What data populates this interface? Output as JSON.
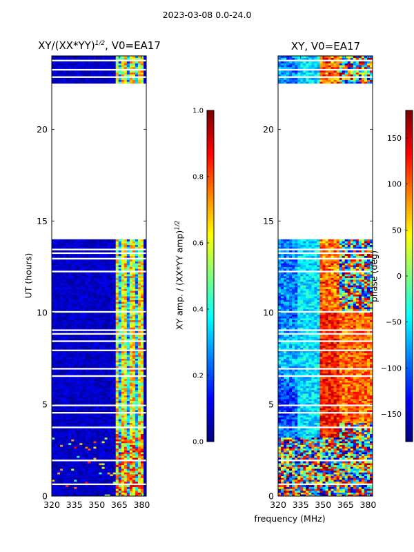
{
  "suptitle": "2023-03-08 0.0-24.0",
  "panels": {
    "left": {
      "title": "XY/(XX*YY)$^{1/2}$, V0=EA17",
      "title_main": "XY/(XX*YY)",
      "title_exp": "1/2",
      "title_tail": ", V0=EA17"
    },
    "right": {
      "title": "XY, V0=EA17"
    }
  },
  "y_axis_label": "UT (hours)",
  "x_axis_label": "frequency (MHz)",
  "colorbar_amp": {
    "label_main": "XY amp. / (XX*YY amp)",
    "label_exp": "1/2"
  },
  "colorbar_phase": {
    "label": "phase (deg)"
  },
  "chart_data": [
    {
      "type": "heatmap",
      "name": "normalized XY amplitude",
      "title": "XY/(XX*YY)^(1/2), V0=EA17",
      "xlabel": "",
      "ylabel": "UT (hours)",
      "xlim": [
        320,
        383
      ],
      "ylim": [
        0,
        24
      ],
      "xticks": [
        320,
        335,
        350,
        365,
        380
      ],
      "yticks": [
        0,
        5,
        10,
        15,
        20
      ],
      "colormap": "jet",
      "clim": [
        0.0,
        1.0
      ],
      "data_gap_hours": [
        14.0,
        22.5
      ],
      "colorbar_ticks": [
        0.0,
        0.2,
        0.4,
        0.6,
        0.8,
        1.0
      ],
      "colorbar_label": "XY amp. / (XX*YY amp)^(1/2)"
    },
    {
      "type": "heatmap",
      "name": "XY phase",
      "title": "XY, V0=EA17",
      "xlabel": "frequency (MHz)",
      "ylabel": "",
      "xlim": [
        320,
        383
      ],
      "ylim": [
        0,
        24
      ],
      "xticks": [
        320,
        335,
        350,
        365,
        380
      ],
      "yticks": [
        0,
        5,
        10,
        15,
        20
      ],
      "colormap": "jet",
      "clim": [
        -180,
        180
      ],
      "data_gap_hours": [
        14.0,
        22.5
      ],
      "colorbar_ticks": [
        -150,
        -100,
        -50,
        0,
        50,
        100,
        150
      ],
      "colorbar_label": "phase (deg)"
    }
  ]
}
